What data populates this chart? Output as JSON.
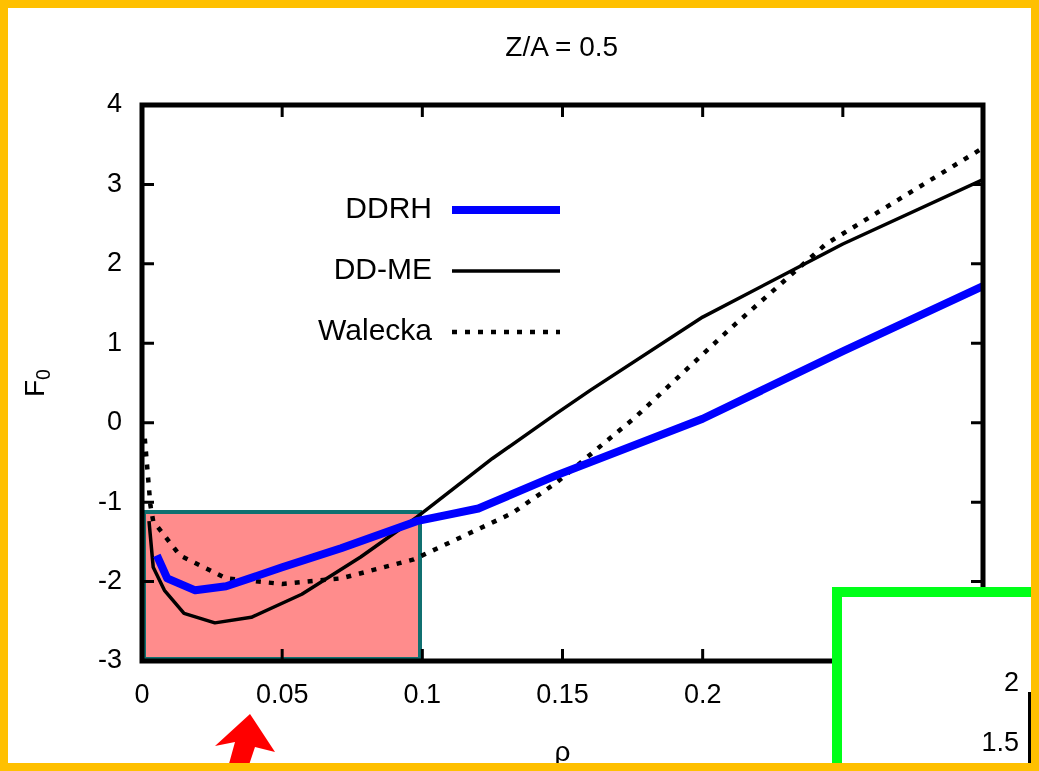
{
  "chart_data": [
    {
      "type": "line",
      "title": "Z/A = 0.5",
      "xlabel": "ρ",
      "ylabel": "F$_{0}$",
      "xlim": [
        0,
        0.3
      ],
      "xticks": [
        0,
        0.05,
        0.1,
        0.15,
        0.2,
        {
          "value": 0.25,
          "label": null
        },
        {
          "value": 0.3,
          "label": null
        }
      ],
      "ylim": [
        -3,
        4
      ],
      "yticks": [
        -3,
        -2,
        -1,
        0,
        1,
        2,
        3,
        4
      ],
      "legend": "top left",
      "series": [
        {
          "name": "DDRH",
          "color": "#0000ff",
          "x": [
            0.0053,
            0.009,
            0.019,
            0.03,
            0.05,
            0.071,
            0.098,
            0.12,
            0.148,
            0.2,
            0.25,
            0.3
          ],
          "values": [
            -1.67,
            -1.96,
            -2.11,
            -2.06,
            -1.82,
            -1.58,
            -1.24,
            -1.08,
            -0.66,
            0.05,
            0.9,
            1.72
          ]
        },
        {
          "name": "DD-ME",
          "color": "#000000",
          "x": [
            0.0025,
            0.004,
            0.008,
            0.015,
            0.026,
            0.039,
            0.057,
            0.078,
            0.098,
            0.125,
            0.148,
            0.16,
            0.2,
            0.25,
            0.3
          ],
          "values": [
            -1.24,
            -1.82,
            -2.11,
            -2.4,
            -2.52,
            -2.45,
            -2.16,
            -1.69,
            -1.19,
            -0.45,
            0.12,
            0.41,
            1.33,
            2.25,
            3.06
          ]
        },
        {
          "name": "Walecka",
          "color": "#000000",
          "line_style": "dotted",
          "x": [
            0.001,
            0.003,
            0.004,
            0.0135,
            0.03,
            0.05,
            0.071,
            0.097,
            0.132,
            0.148,
            0.176,
            0.21,
            0.244,
            0.3
          ],
          "values": [
            -0.2,
            -1.04,
            -1.24,
            -1.67,
            -1.96,
            -2.03,
            -1.96,
            -1.72,
            -1.14,
            -0.75,
            0.07,
            1.19,
            2.25,
            3.46
          ]
        }
      ]
    },
    {
      "type": "other",
      "annotations": [
        "2",
        "1.5"
      ]
    }
  ]
}
